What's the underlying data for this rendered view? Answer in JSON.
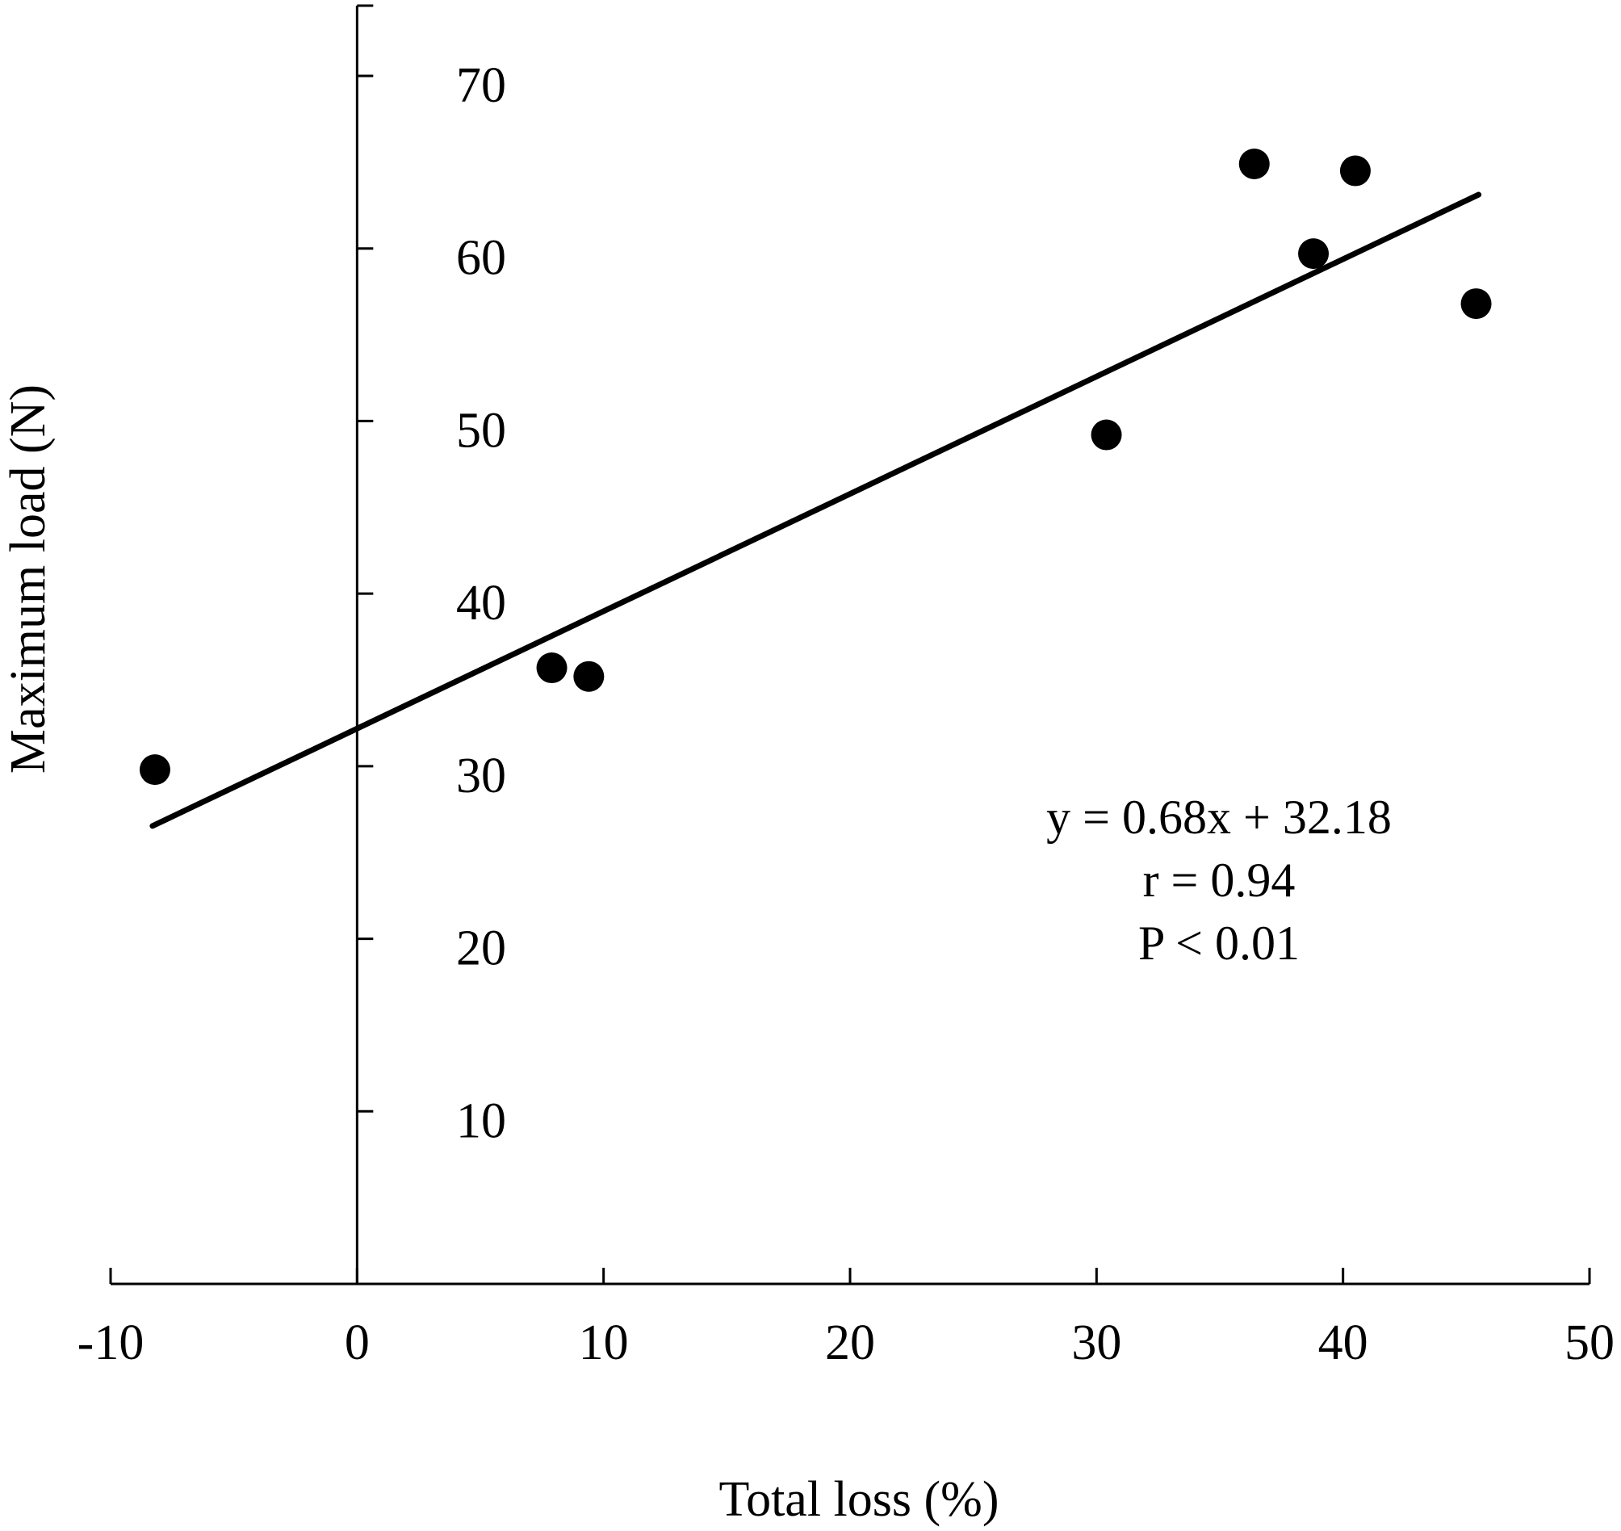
{
  "chart_data": {
    "type": "scatter",
    "title": "",
    "xlabel": "Total loss (%)",
    "ylabel": "Maximum load (N)",
    "xlim": [
      -10,
      50
    ],
    "ylim": [
      0,
      70
    ],
    "x_ticks": [
      -10,
      0,
      10,
      20,
      30,
      40,
      50
    ],
    "y_ticks": [
      10,
      20,
      30,
      40,
      50,
      60,
      70
    ],
    "x_tick_labels": [
      "-10",
      "0",
      "10",
      "20",
      "30",
      "40",
      "50"
    ],
    "y_tick_labels": [
      "10",
      "20",
      "30",
      "40",
      "50",
      "60",
      "70"
    ],
    "grid": false,
    "legend": "none",
    "series": [
      {
        "points": [
          {
            "x": -8.2,
            "y": 29.8
          },
          {
            "x": 7.9,
            "y": 35.7
          },
          {
            "x": 9.4,
            "y": 35.2
          },
          {
            "x": 30.4,
            "y": 49.2
          },
          {
            "x": 36.4,
            "y": 64.9
          },
          {
            "x": 38.8,
            "y": 59.7
          },
          {
            "x": 40.5,
            "y": 64.5
          },
          {
            "x": 45.4,
            "y": 56.8
          }
        ]
      }
    ],
    "trendline": {
      "slope": 0.68,
      "intercept": 32.18,
      "x_range": [
        -8.3,
        45.5
      ]
    },
    "annotation": [
      "y = 0.68x + 32.18",
      "r = 0.94",
      "P < 0.01"
    ],
    "colors": {
      "marker": "#000000",
      "line": "#000000",
      "background": "#ffffff"
    }
  }
}
